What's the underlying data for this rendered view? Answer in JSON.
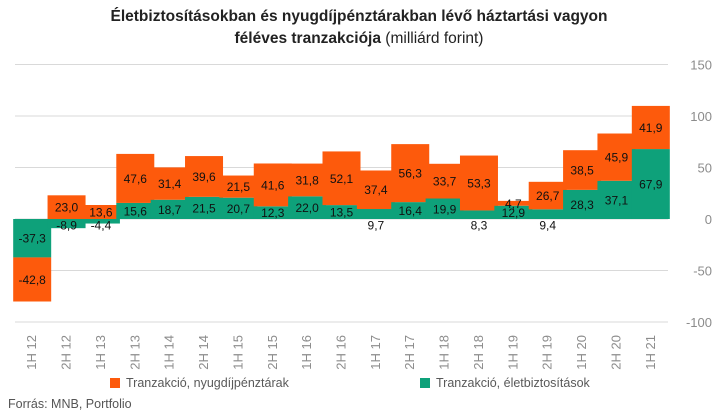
{
  "chart_data": {
    "type": "bar",
    "stacked": true,
    "title": "Életbiztosításokban és nyugdíjpénztárakban lévő háztartási vagyon féléves tranzakciója",
    "title_line1": "Életbiztosításokban és nyugdíjpénztárakban lévő háztartási vagyon",
    "title_line2_bold": "féléves tranzakciója",
    "title_line2_unit": "(milliárd forint)",
    "categories": [
      "1H 12",
      "2H 12",
      "1H 13",
      "2H 13",
      "1H 14",
      "2H 14",
      "1H 15",
      "2H 15",
      "1H 16",
      "2H 16",
      "1H 17",
      "2H 17",
      "1H 18",
      "2H 18",
      "1H 19",
      "2H 19",
      "1H 20",
      "2H 20",
      "1H 21"
    ],
    "series": [
      {
        "name": "Tranzakció, életbiztosítások",
        "color": "#0ea17a",
        "values": [
          -37.3,
          -8.9,
          -4.4,
          15.6,
          18.7,
          21.5,
          20.7,
          12.3,
          22.0,
          13.5,
          9.7,
          16.4,
          19.9,
          8.3,
          12.9,
          9.4,
          28.3,
          37.1,
          67.9
        ],
        "labels": [
          "-37,3",
          "-8,9",
          "-4,4",
          "15,6",
          "18,7",
          "21,5",
          "20,7",
          "12,3",
          "22,0",
          "13,5",
          "9,7",
          "16,4",
          "19,9",
          "8,3",
          "12,9",
          "9,4",
          "28,3",
          "37,1",
          "67,9"
        ]
      },
      {
        "name": "Tranzakció, nyugdíjpénztárak",
        "color": "#fd5a0c",
        "values": [
          -42.8,
          23.0,
          13.6,
          47.6,
          31.4,
          39.6,
          21.5,
          41.6,
          31.8,
          52.1,
          37.4,
          56.3,
          33.7,
          53.3,
          4.7,
          26.7,
          38.5,
          45.9,
          41.9
        ],
        "labels": [
          "-42,8",
          "23,0",
          "13,6",
          "47,6",
          "31,4",
          "39,6",
          "21,5",
          "41,6",
          "31,8",
          "52,1",
          "37,4",
          "56,3",
          "33,7",
          "53,3",
          "4,7",
          "26,7",
          "38,5",
          "45,9",
          "41,9"
        ]
      }
    ],
    "ylim": [
      -100,
      150
    ],
    "yticks": [
      -100,
      -50,
      0,
      50,
      100,
      150
    ],
    "y_axis_side": "right",
    "grid": true,
    "legend_position": "bottom",
    "xlabel": "",
    "ylabel": ""
  },
  "legend": {
    "pension": "Tranzakció, nyugdíjpénztárak",
    "life": "Tranzakció, életbiztosítások"
  },
  "source": "Forrás: MNB, Portfolio"
}
